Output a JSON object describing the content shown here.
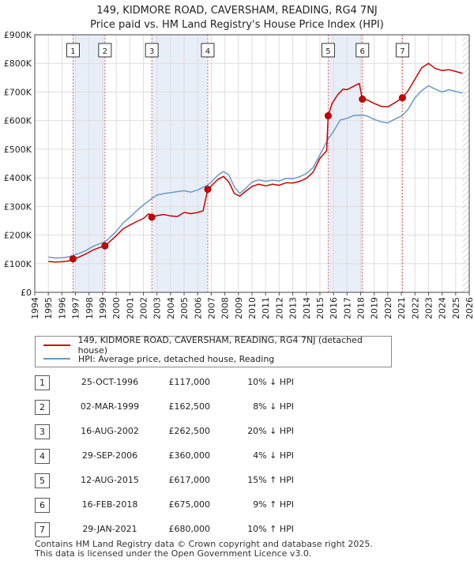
{
  "title_line1": "149, KIDMORE ROAD, CAVERSHAM, READING, RG4 7NJ",
  "title_line2": "Price paid vs. HM Land Registry's House Price Index (HPI)",
  "colors": {
    "property": "#cc0000",
    "hpi": "#6699cc",
    "band": "#e8eef8",
    "marker_line": "#e06666"
  },
  "chart_data": {
    "type": "line",
    "y_ticks": [
      "£0",
      "£100K",
      "£200K",
      "£300K",
      "£400K",
      "£500K",
      "£600K",
      "£700K",
      "£800K",
      "£900K"
    ],
    "ylim": [
      0,
      900000
    ],
    "xlim": [
      1994.0,
      2026.0
    ],
    "x_ticks": [
      "1994",
      "1995",
      "1996",
      "1997",
      "1998",
      "1999",
      "2000",
      "2001",
      "2002",
      "2003",
      "2004",
      "2005",
      "2006",
      "2007",
      "2008",
      "2009",
      "2010",
      "2011",
      "2012",
      "2013",
      "2014",
      "2015",
      "2016",
      "2017",
      "2018",
      "2019",
      "2020",
      "2021",
      "2022",
      "2023",
      "2024",
      "2025",
      "2026"
    ],
    "data_range": [
      1995.0,
      2025.5
    ],
    "series": [
      {
        "name": "149, KIDMORE ROAD, CAVERSHAM, READING, RG4 7NJ (detached house)",
        "points": [
          [
            1995.0,
            108000
          ],
          [
            1995.5,
            106000
          ],
          [
            1996.0,
            107000
          ],
          [
            1996.5,
            110000
          ],
          [
            1996.82,
            117000
          ],
          [
            1997.3,
            124000
          ],
          [
            1997.8,
            135000
          ],
          [
            1998.3,
            148000
          ],
          [
            1998.8,
            157000
          ],
          [
            1999.17,
            162500
          ],
          [
            1999.5,
            176000
          ],
          [
            2000.0,
            198000
          ],
          [
            2000.5,
            222000
          ],
          [
            2001.0,
            235000
          ],
          [
            2001.5,
            247000
          ],
          [
            2002.0,
            258000
          ],
          [
            2002.4,
            275000
          ],
          [
            2002.62,
            262500
          ],
          [
            2003.0,
            268000
          ],
          [
            2003.5,
            272000
          ],
          [
            2004.0,
            267000
          ],
          [
            2004.5,
            265000
          ],
          [
            2005.0,
            279000
          ],
          [
            2005.5,
            275000
          ],
          [
            2006.0,
            279000
          ],
          [
            2006.4,
            285000
          ],
          [
            2006.74,
            360000
          ],
          [
            2007.0,
            372000
          ],
          [
            2007.5,
            395000
          ],
          [
            2007.9,
            405000
          ],
          [
            2008.3,
            385000
          ],
          [
            2008.7,
            345000
          ],
          [
            2009.1,
            336000
          ],
          [
            2009.5,
            352000
          ],
          [
            2010.0,
            370000
          ],
          [
            2010.5,
            378000
          ],
          [
            2011.0,
            372000
          ],
          [
            2011.5,
            378000
          ],
          [
            2012.0,
            374000
          ],
          [
            2012.5,
            383000
          ],
          [
            2013.0,
            382000
          ],
          [
            2013.5,
            388000
          ],
          [
            2014.0,
            398000
          ],
          [
            2014.5,
            420000
          ],
          [
            2015.0,
            468000
          ],
          [
            2015.5,
            495000
          ],
          [
            2015.61,
            617000
          ],
          [
            2015.9,
            660000
          ],
          [
            2016.3,
            690000
          ],
          [
            2016.7,
            710000
          ],
          [
            2017.0,
            708000
          ],
          [
            2017.4,
            718000
          ],
          [
            2017.9,
            730000
          ],
          [
            2018.13,
            675000
          ],
          [
            2018.5,
            672000
          ],
          [
            2019.0,
            660000
          ],
          [
            2019.5,
            650000
          ],
          [
            2020.0,
            648000
          ],
          [
            2020.5,
            662000
          ],
          [
            2021.08,
            680000
          ],
          [
            2021.5,
            705000
          ],
          [
            2022.0,
            745000
          ],
          [
            2022.5,
            785000
          ],
          [
            2023.0,
            800000
          ],
          [
            2023.5,
            782000
          ],
          [
            2024.0,
            775000
          ],
          [
            2024.5,
            778000
          ],
          [
            2025.0,
            772000
          ],
          [
            2025.5,
            765000
          ]
        ]
      },
      {
        "name": "HPI: Average price, detached house, Reading",
        "points": [
          [
            1995.0,
            123000
          ],
          [
            1995.5,
            120000
          ],
          [
            1996.0,
            121000
          ],
          [
            1996.5,
            124000
          ],
          [
            1996.82,
            129000
          ],
          [
            1997.3,
            137000
          ],
          [
            1997.8,
            147000
          ],
          [
            1998.3,
            161000
          ],
          [
            1998.8,
            170000
          ],
          [
            1999.17,
            177000
          ],
          [
            1999.5,
            190000
          ],
          [
            2000.0,
            213000
          ],
          [
            2000.5,
            242000
          ],
          [
            2001.0,
            262000
          ],
          [
            2001.5,
            285000
          ],
          [
            2002.0,
            305000
          ],
          [
            2002.62,
            328000
          ],
          [
            2003.0,
            340000
          ],
          [
            2003.5,
            345000
          ],
          [
            2004.0,
            348000
          ],
          [
            2004.5,
            352000
          ],
          [
            2005.0,
            355000
          ],
          [
            2005.5,
            350000
          ],
          [
            2006.0,
            358000
          ],
          [
            2006.74,
            375000
          ],
          [
            2007.0,
            385000
          ],
          [
            2007.5,
            410000
          ],
          [
            2007.9,
            422000
          ],
          [
            2008.3,
            410000
          ],
          [
            2008.7,
            368000
          ],
          [
            2009.1,
            346000
          ],
          [
            2009.5,
            362000
          ],
          [
            2010.0,
            385000
          ],
          [
            2010.5,
            393000
          ],
          [
            2011.0,
            388000
          ],
          [
            2011.5,
            392000
          ],
          [
            2012.0,
            389000
          ],
          [
            2012.5,
            398000
          ],
          [
            2013.0,
            397000
          ],
          [
            2013.5,
            404000
          ],
          [
            2014.0,
            415000
          ],
          [
            2014.5,
            436000
          ],
          [
            2015.0,
            480000
          ],
          [
            2015.61,
            536000
          ],
          [
            2016.0,
            562000
          ],
          [
            2016.5,
            602000
          ],
          [
            2017.0,
            608000
          ],
          [
            2017.5,
            618000
          ],
          [
            2018.13,
            619000
          ],
          [
            2018.5,
            616000
          ],
          [
            2019.0,
            604000
          ],
          [
            2019.5,
            596000
          ],
          [
            2020.0,
            592000
          ],
          [
            2020.5,
            605000
          ],
          [
            2021.08,
            618000
          ],
          [
            2021.5,
            640000
          ],
          [
            2022.0,
            680000
          ],
          [
            2022.5,
            705000
          ],
          [
            2023.0,
            722000
          ],
          [
            2023.5,
            710000
          ],
          [
            2024.0,
            700000
          ],
          [
            2024.5,
            708000
          ],
          [
            2025.0,
            702000
          ],
          [
            2025.5,
            696000
          ]
        ]
      }
    ],
    "sales": [
      {
        "label": "1",
        "x": 1996.82,
        "price": 117000
      },
      {
        "label": "2",
        "x": 1999.17,
        "price": 162500
      },
      {
        "label": "3",
        "x": 2002.62,
        "price": 262500
      },
      {
        "label": "4",
        "x": 2006.74,
        "price": 360000
      },
      {
        "label": "5",
        "x": 2015.61,
        "price": 617000
      },
      {
        "label": "6",
        "x": 2018.13,
        "price": 675000
      },
      {
        "label": "7",
        "x": 2021.08,
        "price": 680000
      }
    ]
  },
  "legend": {
    "property": "149, KIDMORE ROAD, CAVERSHAM, READING, RG4 7NJ (detached house)",
    "hpi": "HPI: Average price, detached house, Reading"
  },
  "transactions": [
    {
      "num": "1",
      "date": "25-OCT-1996",
      "price": "£117,000",
      "hpi": "10% ↓ HPI"
    },
    {
      "num": "2",
      "date": "02-MAR-1999",
      "price": "£162,500",
      "hpi": "8% ↓ HPI"
    },
    {
      "num": "3",
      "date": "16-AUG-2002",
      "price": "£262,500",
      "hpi": "20% ↓ HPI"
    },
    {
      "num": "4",
      "date": "29-SEP-2006",
      "price": "£360,000",
      "hpi": "4% ↓ HPI"
    },
    {
      "num": "5",
      "date": "12-AUG-2015",
      "price": "£617,000",
      "hpi": "15% ↑ HPI"
    },
    {
      "num": "6",
      "date": "16-FEB-2018",
      "price": "£675,000",
      "hpi": "9% ↑ HPI"
    },
    {
      "num": "7",
      "date": "29-JAN-2021",
      "price": "£680,000",
      "hpi": "10% ↑ HPI"
    }
  ],
  "footer_line1": "Contains HM Land Registry data © Crown copyright and database right 2025.",
  "footer_line2": "This data is licensed under the Open Government Licence v3.0."
}
